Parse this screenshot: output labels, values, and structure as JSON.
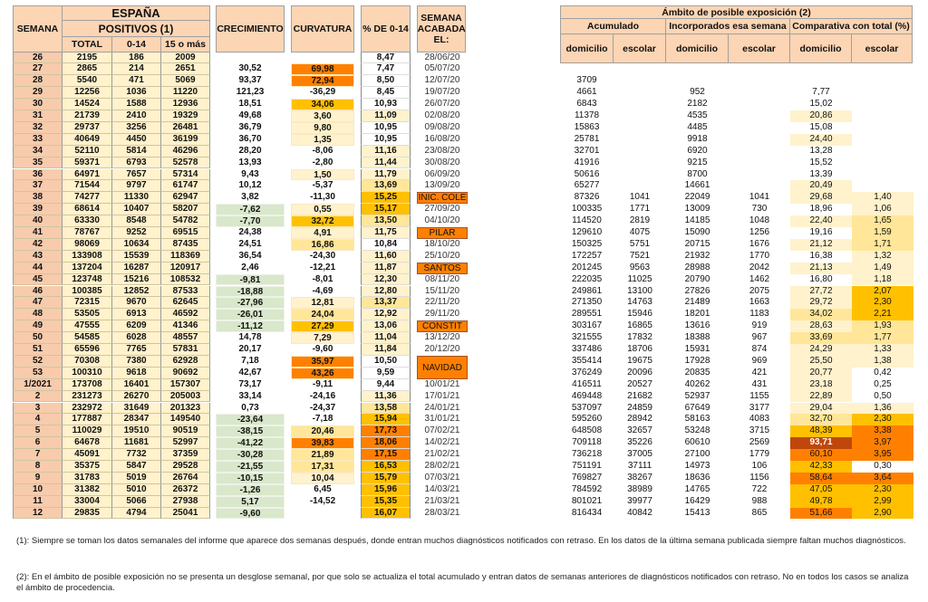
{
  "palette": {
    "salmon": "#F8CBAD",
    "header": "#FCD5B4",
    "pale": "#FFF2CC",
    "yellow": "#FFE699",
    "amber": "#FFC000",
    "orange": "#FF8000",
    "dark": "#C0470B",
    "green": "#D9E7CB",
    "white": "#FFFFFF"
  },
  "header": {
    "semana": "SEMANA",
    "espana": "ESPAÑA",
    "positivos": "POSITIVOS (1)",
    "total": "TOTAL",
    "c014": "0-14",
    "c15": "15 o más",
    "crecimiento": "CRECIMIENTO",
    "curvatura": "CURVATURA",
    "pct014": "% DE 0-14",
    "semana_acabada": "SEMANA ACABADA EL:",
    "ambito": "Ámbito de posible exposición (2)",
    "acumulado": "Acumulado",
    "incorporados": "Incorporados esa semana",
    "comparativa": "Comparativa con total (%)",
    "domicilio": "domicilio",
    "escolar": "escolar"
  },
  "rows": [
    {
      "v": [
        "26",
        "2195",
        "186",
        "2009",
        "",
        "",
        "8,47",
        "28/06/20"
      ],
      "r": null,
      "hl": ".....",
      "tag": false
    },
    {
      "v": [
        "27",
        "2865",
        "214",
        "2651",
        "30,52",
        "69,98",
        "7,47",
        "05/07/20"
      ],
      "r": [
        "",
        "",
        "",
        "",
        "",
        ""
      ],
      "hl": ".o...",
      "tag": false
    },
    {
      "v": [
        "28",
        "5540",
        "471",
        "5069",
        "93,37",
        "72,94",
        "8,50",
        "12/07/20"
      ],
      "r": [
        "3709",
        "",
        "",
        "",
        "",
        ""
      ],
      "hl": ".o...",
      "tag": false
    },
    {
      "v": [
        "29",
        "12256",
        "1036",
        "11220",
        "121,23",
        "-36,29",
        "8,45",
        "19/07/20"
      ],
      "r": [
        "4661",
        "",
        "952",
        "",
        "7,77",
        ""
      ],
      "hl": ".....",
      "tag": false
    },
    {
      "v": [
        "30",
        "14524",
        "1588",
        "12936",
        "18,51",
        "34,06",
        "10,93",
        "26/07/20"
      ],
      "r": [
        "6843",
        "",
        "2182",
        "",
        "15,02",
        ""
      ],
      "hl": ".a...",
      "tag": false
    },
    {
      "v": [
        "31",
        "21739",
        "2410",
        "19329",
        "49,68",
        "3,60",
        "11,09",
        "02/08/20"
      ],
      "r": [
        "11378",
        "",
        "4535",
        "",
        "20,86",
        ""
      ],
      "hl": ".ppp.",
      "tag": false
    },
    {
      "v": [
        "32",
        "29737",
        "3256",
        "26481",
        "36,79",
        "9,80",
        "10,95",
        "09/08/20"
      ],
      "r": [
        "15863",
        "",
        "4485",
        "",
        "15,08",
        ""
      ],
      "hl": ".p...",
      "tag": false
    },
    {
      "v": [
        "33",
        "40649",
        "4450",
        "36199",
        "36,70",
        "1,35",
        "10,95",
        "16/08/20"
      ],
      "r": [
        "25781",
        "",
        "9918",
        "",
        "24,40",
        ""
      ],
      "hl": ".p.p.",
      "tag": false
    },
    {
      "v": [
        "34",
        "52110",
        "5814",
        "46296",
        "28,20",
        "-8,06",
        "11,16",
        "23/08/20"
      ],
      "r": [
        "32701",
        "",
        "6920",
        "",
        "13,28",
        ""
      ],
      "hl": "..p..",
      "tag": false
    },
    {
      "v": [
        "35",
        "59371",
        "6793",
        "52578",
        "13,93",
        "-2,80",
        "11,44",
        "30/08/20"
      ],
      "r": [
        "41916",
        "",
        "9215",
        "",
        "15,52",
        ""
      ],
      "hl": "..p..",
      "tag": false
    },
    {
      "v": [
        "36",
        "64971",
        "7657",
        "57314",
        "9,43",
        "1,50",
        "11,79",
        "06/09/20"
      ],
      "r": [
        "50616",
        "",
        "8700",
        "",
        "13,39",
        ""
      ],
      "hl": ".pp..",
      "tag": false
    },
    {
      "v": [
        "37",
        "71544",
        "9797",
        "61747",
        "10,12",
        "-5,37",
        "13,69",
        "13/09/20"
      ],
      "r": [
        "65277",
        "",
        "14661",
        "",
        "20,49",
        ""
      ],
      "hl": "..yp.",
      "tag": false
    },
    {
      "v": [
        "38",
        "74277",
        "11330",
        "62947",
        "3,82",
        "-11,30",
        "15,25",
        "INIC. COLE"
      ],
      "r": [
        "87326",
        "1041",
        "22049",
        "1041",
        "29,68",
        "1,40"
      ],
      "hl": "..app",
      "tag": true
    },
    {
      "v": [
        "39",
        "68614",
        "10407",
        "58207",
        "-7,62",
        "0,55",
        "15,17",
        "27/09/20"
      ],
      "r": [
        "100335",
        "1771",
        "13009",
        "730",
        "18,96",
        "1,06"
      ],
      "hl": "gpa.p",
      "tag": false
    },
    {
      "v": [
        "40",
        "63330",
        "8548",
        "54782",
        "-7,70",
        "32,72",
        "13,50",
        "04/10/20"
      ],
      "r": [
        "114520",
        "2819",
        "14185",
        "1048",
        "22,40",
        "1,65"
      ],
      "hl": "gaypy",
      "tag": false
    },
    {
      "v": [
        "41",
        "78767",
        "9252",
        "69515",
        "24,38",
        "4,91",
        "11,75",
        "PILAR"
      ],
      "r": [
        "129610",
        "4075",
        "15090",
        "1256",
        "19,16",
        "1,59"
      ],
      "hl": ".pp.y",
      "tag": true
    },
    {
      "v": [
        "42",
        "98069",
        "10634",
        "87435",
        "24,51",
        "16,86",
        "10,84",
        "18/10/20"
      ],
      "r": [
        "150325",
        "5751",
        "20715",
        "1676",
        "21,12",
        "1,71"
      ],
      "hl": ".y.py",
      "tag": false
    },
    {
      "v": [
        "43",
        "133908",
        "15539",
        "118369",
        "36,54",
        "-24,30",
        "11,60",
        "25/10/20"
      ],
      "r": [
        "172257",
        "7521",
        "21932",
        "1770",
        "16,38",
        "1,32"
      ],
      "hl": "..p.p",
      "tag": false
    },
    {
      "v": [
        "44",
        "137204",
        "16287",
        "120917",
        "2,46",
        "-12,21",
        "11,87",
        "SANTOS"
      ],
      "r": [
        "201245",
        "9563",
        "28988",
        "2042",
        "21,13",
        "1,49"
      ],
      "hl": "..ppp",
      "tag": true
    },
    {
      "v": [
        "45",
        "123748",
        "15216",
        "108532",
        "-9,81",
        "-8,01",
        "12,30",
        "08/11/20"
      ],
      "r": [
        "222035",
        "11025",
        "20790",
        "1462",
        "16,80",
        "1,18"
      ],
      "hl": "g.p.p",
      "tag": false
    },
    {
      "v": [
        "46",
        "100385",
        "12852",
        "87533",
        "-18,88",
        "-4,69",
        "12,80",
        "15/11/20"
      ],
      "r": [
        "249861",
        "13100",
        "27826",
        "2075",
        "27,72",
        "2,07"
      ],
      "hl": "g.ppa",
      "tag": false
    },
    {
      "v": [
        "47",
        "72315",
        "9670",
        "62645",
        "-27,96",
        "12,81",
        "13,37",
        "22/11/20"
      ],
      "r": [
        "271350",
        "14763",
        "21489",
        "1663",
        "29,72",
        "2,30"
      ],
      "hl": "gpypa",
      "tag": false
    },
    {
      "v": [
        "48",
        "53505",
        "6913",
        "46592",
        "-26,01",
        "24,04",
        "12,92",
        "29/11/20"
      ],
      "r": [
        "289551",
        "15946",
        "18201",
        "1183",
        "34,02",
        "2,21"
      ],
      "hl": "gypya",
      "tag": false
    },
    {
      "v": [
        "49",
        "47555",
        "6209",
        "41346",
        "-11,12",
        "27,29",
        "13,06",
        "CONSTIT"
      ],
      "r": [
        "303167",
        "16865",
        "13616",
        "919",
        "28,63",
        "1,93"
      ],
      "hl": "gappy",
      "tag": true
    },
    {
      "v": [
        "50",
        "54585",
        "6028",
        "48557",
        "14,78",
        "7,29",
        "11,04",
        "13/12/20"
      ],
      "r": [
        "321555",
        "17832",
        "18388",
        "967",
        "33,69",
        "1,77"
      ],
      "hl": ".ppyy",
      "tag": false
    },
    {
      "v": [
        "51",
        "65596",
        "7765",
        "57831",
        "20,17",
        "-9,60",
        "11,84",
        "20/12/20"
      ],
      "r": [
        "337486",
        "18706",
        "15931",
        "874",
        "24,29",
        "1,33"
      ],
      "hl": "..ppp",
      "tag": false
    },
    {
      "v": [
        "52",
        "70308",
        "7380",
        "62928",
        "7,18",
        "35,97",
        "10,50",
        "NAVIDAD"
      ],
      "r": [
        "355414",
        "19675",
        "17928",
        "969",
        "25,50",
        "1,38"
      ],
      "hl": ".o.pp",
      "tag": true,
      "span": 2
    },
    {
      "v": [
        "53",
        "100310",
        "9618",
        "90692",
        "42,67",
        "43,26",
        "9,59",
        ""
      ],
      "r": [
        "376249",
        "20096",
        "20835",
        "421",
        "20,77",
        "0,42"
      ],
      "hl": ".o.p.",
      "tag": false,
      "skip": true
    },
    {
      "v": [
        "1/2021",
        "173708",
        "16401",
        "157307",
        "73,17",
        "-9,11",
        "9,44",
        "10/01/21"
      ],
      "r": [
        "416511",
        "20527",
        "40262",
        "431",
        "23,18",
        "0,25"
      ],
      "hl": "...p.",
      "tag": false
    },
    {
      "v": [
        "2",
        "231273",
        "26270",
        "205003",
        "33,14",
        "-24,16",
        "11,36",
        "17/01/21"
      ],
      "r": [
        "469448",
        "21682",
        "52937",
        "1155",
        "22,89",
        "0,50"
      ],
      "hl": "..pp.",
      "tag": false
    },
    {
      "v": [
        "3",
        "232972",
        "31649",
        "201323",
        "0,73",
        "-24,37",
        "13,58",
        "24/01/21"
      ],
      "r": [
        "537097",
        "24859",
        "67649",
        "3177",
        "29,04",
        "1,36"
      ],
      "hl": "..ypp",
      "tag": false
    },
    {
      "v": [
        "4",
        "177887",
        "28347",
        "149540",
        "-23,64",
        "-7,18",
        "15,94",
        "31/01/21"
      ],
      "r": [
        "595260",
        "28942",
        "58163",
        "4083",
        "32,70",
        "2,30"
      ],
      "hl": "g.aya",
      "tag": false
    },
    {
      "v": [
        "5",
        "110029",
        "19510",
        "90519",
        "-38,15",
        "20,46",
        "17,73",
        "07/02/21"
      ],
      "r": [
        "648508",
        "32657",
        "53248",
        "3715",
        "48,39",
        "3,38"
      ],
      "hl": "gyoao",
      "tag": false
    },
    {
      "v": [
        "6",
        "64678",
        "11681",
        "52997",
        "-41,22",
        "39,83",
        "18,06",
        "14/02/21"
      ],
      "r": [
        "709118",
        "35226",
        "60610",
        "2569",
        "93,71",
        "3,97"
      ],
      "hl": "goodo",
      "tag": false
    },
    {
      "v": [
        "7",
        "45091",
        "7732",
        "37359",
        "-30,28",
        "21,89",
        "17,15",
        "21/02/21"
      ],
      "r": [
        "736218",
        "37005",
        "27100",
        "1779",
        "60,10",
        "3,95"
      ],
      "hl": "gyooo",
      "tag": false
    },
    {
      "v": [
        "8",
        "35375",
        "5847",
        "29528",
        "-21,55",
        "17,31",
        "16,53",
        "28/02/21"
      ],
      "r": [
        "751191",
        "37111",
        "14973",
        "106",
        "42,33",
        "0,30"
      ],
      "hl": "gyaa.",
      "tag": false
    },
    {
      "v": [
        "9",
        "31783",
        "5019",
        "26764",
        "-10,15",
        "10,04",
        "15,79",
        "07/03/21"
      ],
      "r": [
        "769827",
        "38267",
        "18636",
        "1156",
        "58,64",
        "3,64"
      ],
      "hl": "gpaoo",
      "tag": false
    },
    {
      "v": [
        "10",
        "31382",
        "5010",
        "26372",
        "-1,26",
        "6,45",
        "15,96",
        "14/03/21"
      ],
      "r": [
        "784592",
        "38989",
        "14765",
        "722",
        "47,05",
        "2,30"
      ],
      "hl": "g.aaa",
      "tag": false
    },
    {
      "v": [
        "11",
        "33004",
        "5066",
        "27938",
        "5,17",
        "-14,52",
        "15,35",
        "21/03/21"
      ],
      "r": [
        "801021",
        "39977",
        "16429",
        "988",
        "49,78",
        "2,99"
      ],
      "hl": "g.aaa",
      "tag": false
    },
    {
      "v": [
        "12",
        "29835",
        "4794",
        "25041",
        "-9,60",
        "",
        "16,07",
        "28/03/21"
      ],
      "r": [
        "816434",
        "40842",
        "15413",
        "865",
        "51,66",
        "2,90"
      ],
      "hl": "g.aoa",
      "tag": false
    }
  ],
  "notes": {
    "n1": "(1): Siempre se toman los datos semanales del informe que aparece dos semanas después, donde entran muchos diagnósticos notificados con retraso. En los datos de la última semana publicada siempre faltan muchos diagnósticos.",
    "n2": "(2): En el ámbito de posible exposición no se presenta un desglose semanal, por que solo se actualiza el total acumulado y entran datos de semanas anteriores de diagnósticos notificados con retraso. No en todos los casos se analiza el ámbito de procedencia."
  }
}
